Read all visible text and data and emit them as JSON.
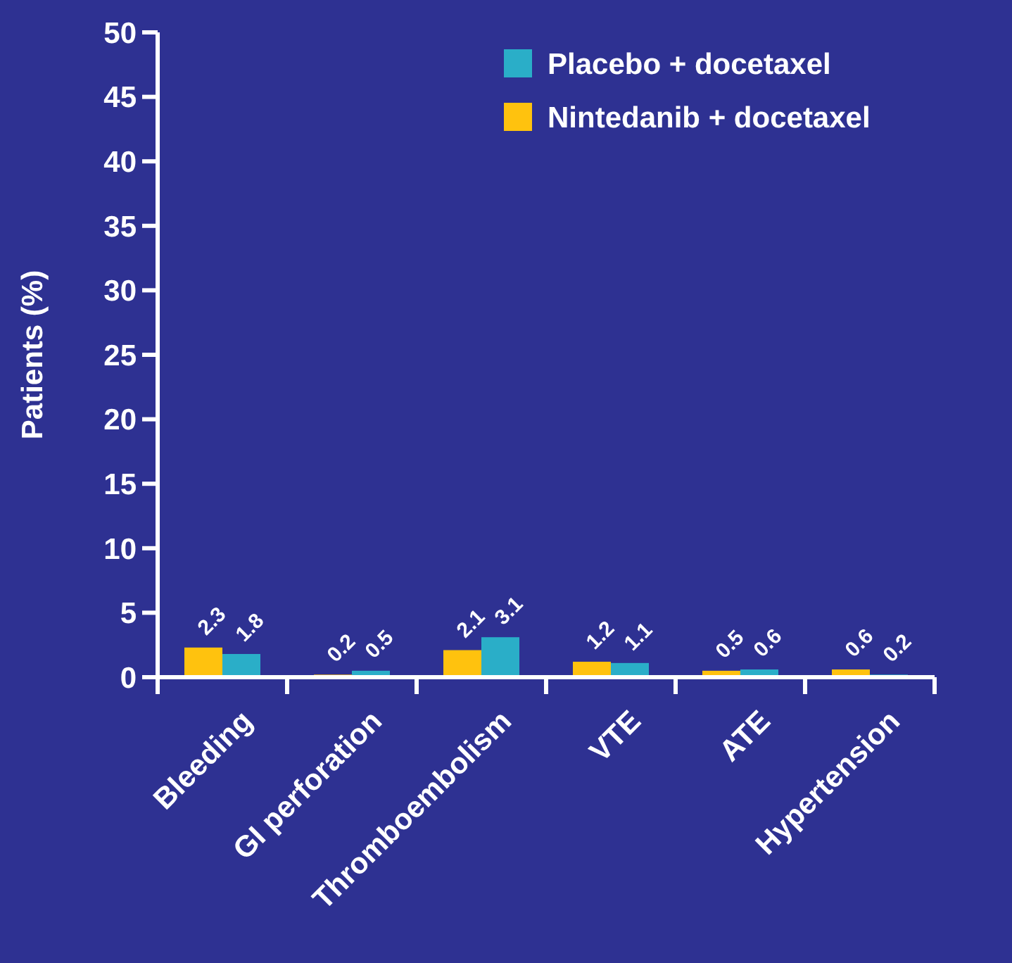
{
  "chart_data": {
    "type": "bar",
    "ylabel": "Patients (%)",
    "categories": [
      "Bleeding",
      "GI perforation",
      "Thromboembolism",
      "VTE",
      "ATE",
      "Hypertension"
    ],
    "series": [
      {
        "name": "Nintedanib + docetaxel",
        "color": "#ffc20e",
        "values": [
          2.3,
          0.2,
          2.1,
          1.2,
          0.5,
          0.6
        ]
      },
      {
        "name": "Placebo + docetaxel",
        "color": "#2aaec8",
        "values": [
          1.8,
          0.5,
          3.1,
          1.1,
          0.6,
          0.2
        ]
      }
    ],
    "ylim": [
      0,
      50
    ],
    "yticks": [
      0,
      5,
      10,
      15,
      20,
      25,
      30,
      35,
      40,
      45,
      50
    ],
    "data_labels": true,
    "legend": "top right",
    "grid": false
  }
}
